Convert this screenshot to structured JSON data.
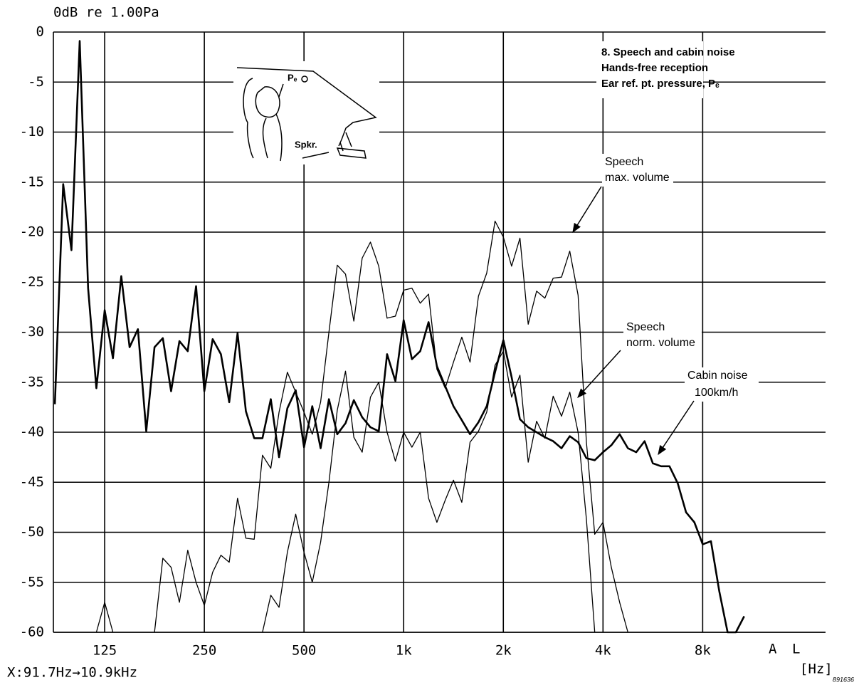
{
  "chart_data": {
    "type": "line",
    "y_label": "0dB re 1.00Pa",
    "x_range_label": "X:91.7Hz→10.9kHz",
    "x_unit": "[Hz]",
    "corner_labels": [
      "A",
      "L"
    ],
    "figure_id": "891636",
    "title_lines": [
      "8. Speech and cabin noise",
      "Hands-free reception",
      "Ear ref. pt. pressure, Pₑ"
    ],
    "inset_labels": [
      "Pₑ",
      "Spkr."
    ],
    "xscale": "log",
    "grid": true,
    "xlim": [
      87.5,
      18800
    ],
    "ylim": [
      -60,
      0
    ],
    "xticks": [
      125,
      250,
      500,
      {
        "value": 1000,
        "label": "1k"
      },
      {
        "value": 2000,
        "label": "2k"
      },
      {
        "value": 4000,
        "label": "4k"
      },
      {
        "value": 8000,
        "label": "8k"
      }
    ],
    "yticks": [
      0,
      -5,
      -10,
      -15,
      -20,
      -25,
      -30,
      -35,
      -40,
      -45,
      -50,
      -55,
      -60
    ],
    "x": [
      88.4,
      93.7,
      99.2,
      105.1,
      111.4,
      118.0,
      125,
      132.4,
      140.3,
      148.7,
      157.5,
      166.9,
      176.8,
      187.3,
      198.4,
      210.2,
      222.7,
      236.0,
      250,
      264.9,
      280.6,
      297.3,
      315.0,
      333.7,
      353.6,
      374.6,
      396.9,
      420.4,
      445.4,
      471.9,
      500,
      529.7,
      561.2,
      594.6,
      630.0,
      667.4,
      707.1,
      749.2,
      793.7,
      840.9,
      890.9,
      943.9,
      1000,
      1059,
      1122,
      1189,
      1260,
      1335,
      1414,
      1498,
      1587,
      1682,
      1782,
      1888,
      2000,
      2119,
      2245,
      2378,
      2520,
      2670,
      2828,
      2997,
      3175,
      3364,
      3564,
      3776,
      4000,
      4238,
      4490,
      4757,
      5040,
      5339,
      5657,
      5993,
      6350,
      6727,
      7127,
      7551,
      8000,
      8476,
      8980,
      9514,
      10079,
      10679
    ],
    "series": [
      {
        "name": [
          "Cabin noise",
          "100km/h"
        ],
        "color": "#000000",
        "width": 2.6,
        "values": [
          -37.2,
          -15.2,
          -21.8,
          -0.9,
          -25.6,
          -35.6,
          -27.8,
          -32.6,
          -24.4,
          -31.5,
          -29.7,
          -39.9,
          -31.5,
          -30.6,
          -35.9,
          -30.9,
          -31.9,
          -25.4,
          -35.9,
          -30.7,
          -32.2,
          -37,
          -30.1,
          -37.9,
          -40.6,
          -40.6,
          -36.7,
          -42.5,
          -37.6,
          -35.8,
          -41.5,
          -37.4,
          -41.6,
          -36.7,
          -40.2,
          -39.1,
          -36.8,
          -38.5,
          -39.5,
          -39.9,
          -32.2,
          -34.9,
          -28.8,
          -32.7,
          -31.9,
          -29,
          -33.4,
          -35.4,
          -37.4,
          -38.8,
          -40.2,
          -39,
          -37.4,
          -34,
          -30.8,
          -34.5,
          -38.7,
          -39.5,
          -40,
          -40.5,
          -40.9,
          -41.6,
          -40.4,
          -41,
          -42.6,
          -42.8,
          -42,
          -41.3,
          -40.2,
          -41.6,
          -42,
          -40.9,
          -43.1,
          -43.4,
          -43.4,
          -45.1,
          -48,
          -49,
          -51.2,
          -50.9,
          -55.9,
          -60,
          -60,
          -58.4
        ]
      },
      {
        "name": [
          "Speech",
          "max. volume"
        ],
        "color": "#000000",
        "width": 1.3,
        "values": [
          null,
          null,
          null,
          null,
          null,
          -60,
          -57,
          -60,
          null,
          null,
          null,
          null,
          -60,
          -52.6,
          -53.5,
          -57,
          -51.8,
          -55,
          -57.3,
          -54,
          -52.3,
          -53,
          -46.6,
          -50.6,
          -50.7,
          -42.3,
          -43.6,
          -38,
          -34,
          -36,
          -38,
          -40.2,
          -37,
          -30,
          -23.3,
          -24.2,
          -28.9,
          -22.6,
          -21,
          -23.4,
          -28.6,
          -28.4,
          -25.8,
          -25.6,
          -27.1,
          -26.2,
          -33.7,
          -35.6,
          -33,
          -30.5,
          -33,
          -26.4,
          -24.1,
          -18.9,
          -20.5,
          -23.4,
          -20.6,
          -29.2,
          -25.9,
          -26.6,
          -24.6,
          -24.5,
          -21.9,
          -26.3,
          -41,
          -50.2,
          -49,
          -53.5,
          -57,
          -60,
          null,
          null,
          null,
          null,
          null,
          null,
          null,
          null,
          null,
          null,
          null,
          null,
          null,
          null
        ]
      },
      {
        "name": [
          "Speech",
          "norm. volume"
        ],
        "color": "#000000",
        "width": 1.3,
        "values": [
          null,
          null,
          null,
          null,
          null,
          null,
          null,
          null,
          null,
          null,
          null,
          null,
          null,
          null,
          null,
          null,
          null,
          null,
          null,
          null,
          null,
          null,
          null,
          null,
          null,
          -60,
          -56.3,
          -57.5,
          -52,
          -48.2,
          -52,
          -55,
          -51,
          -45,
          -37.8,
          -33.9,
          -40.5,
          -42,
          -36.5,
          -35,
          -40,
          -42.9,
          -40,
          -41.5,
          -40,
          -46.6,
          -49,
          -46.8,
          -44.8,
          -47,
          -41,
          -39.9,
          -38,
          -33.3,
          -31.9,
          -36.5,
          -34.3,
          -43,
          -38.9,
          -40.6,
          -36.4,
          -38.4,
          -36,
          -40,
          -48.7,
          -60,
          null,
          null,
          null,
          null,
          null,
          null,
          null,
          null,
          null,
          null,
          null,
          null,
          null,
          null,
          null,
          null,
          null,
          null
        ]
      }
    ]
  }
}
